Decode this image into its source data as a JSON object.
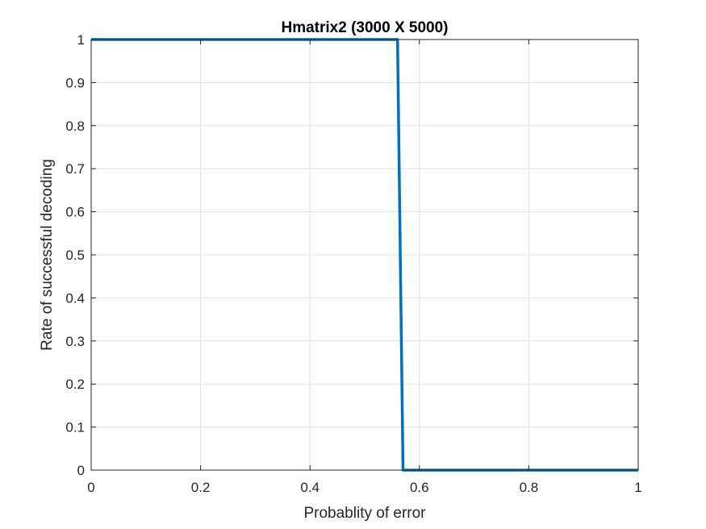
{
  "chart_data": {
    "type": "line",
    "title": "Hmatrix2 (3000 X 5000)",
    "xlabel": "Probablity of error",
    "ylabel": "Rate of successful decoding",
    "xlim": [
      0,
      1
    ],
    "ylim": [
      0,
      1
    ],
    "xticks": [
      0,
      0.2,
      0.4,
      0.6,
      0.8,
      1
    ],
    "xtick_labels": [
      "0",
      "0.2",
      "0.4",
      "0.6",
      "0.8",
      "1"
    ],
    "yticks": [
      0,
      0.1,
      0.2,
      0.3,
      0.4,
      0.5,
      0.6,
      0.7,
      0.8,
      0.9,
      1
    ],
    "ytick_labels": [
      "0",
      "0.1",
      "0.2",
      "0.3",
      "0.4",
      "0.5",
      "0.6",
      "0.7",
      "0.8",
      "0.9",
      "1"
    ],
    "grid": true,
    "series": [
      {
        "color": "#0072BD",
        "x": [
          0,
          0.56,
          0.57,
          1
        ],
        "y": [
          1,
          1,
          0,
          0
        ]
      }
    ]
  }
}
